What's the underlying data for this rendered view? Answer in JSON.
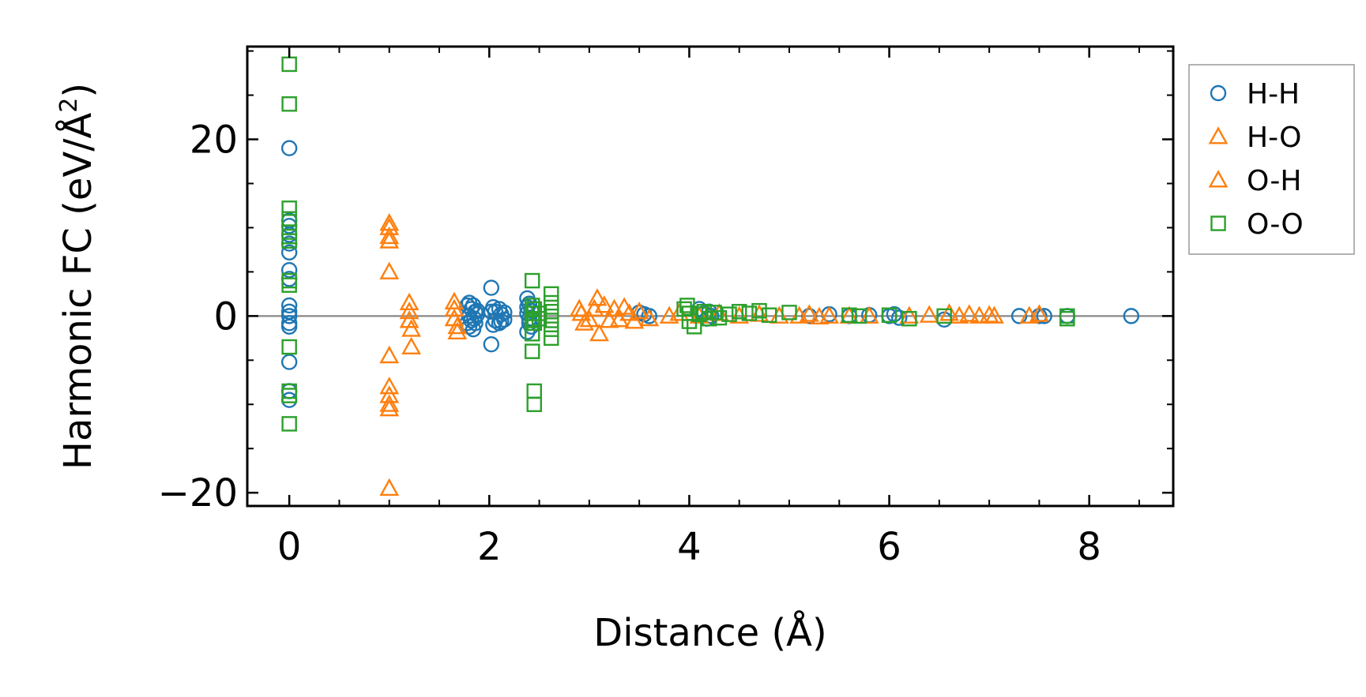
{
  "chart_data": {
    "type": "scatter",
    "title": "",
    "xlabel": "Distance (Å)",
    "ylabel_main": "Harmonic FC (eV/Å",
    "ylabel_sup": "2",
    "ylabel_close": ")",
    "xlim": [
      -0.42,
      8.84
    ],
    "ylim": [
      -21.5,
      30.5
    ],
    "xticks": [
      0,
      2,
      4,
      6,
      8
    ],
    "xtick_labels": [
      "0",
      "2",
      "4",
      "6",
      "8"
    ],
    "yticks": [
      -20,
      0,
      20
    ],
    "ytick_labels": [
      "−20",
      "0",
      "20"
    ],
    "x_minor_step": 0.5,
    "y_minor_step": 5,
    "zero_line": true,
    "grid": false,
    "legend_position": "outside-right-top",
    "series": [
      {
        "name": "H-H",
        "marker": "circle",
        "color": "#1f77b4",
        "x": [
          0,
          0,
          0,
          0,
          0,
          0,
          0,
          0,
          0,
          0,
          0,
          0,
          0,
          0,
          0,
          0,
          1.78,
          1.78,
          1.8,
          1.8,
          1.82,
          1.82,
          1.84,
          1.84,
          1.86,
          1.86,
          1.88,
          1.88,
          1.8,
          1.85,
          2.02,
          2.02,
          2.02,
          2.04,
          2.04,
          2.06,
          2.06,
          2.1,
          2.1,
          2.12,
          2.12,
          2.15,
          2.15,
          2.38,
          2.38,
          2.38,
          2.38,
          2.4,
          2.4,
          2.4,
          2.42,
          2.42,
          3.5,
          3.55,
          3.6,
          4.1,
          4.15,
          4.18,
          4.2,
          4.22,
          5.2,
          5.4,
          5.6,
          5.8,
          6.0,
          6.05,
          6.1,
          6.55,
          7.3,
          7.5,
          7.55,
          7.78,
          8.42
        ],
        "y": [
          19,
          10.8,
          10.2,
          9.2,
          8.2,
          7.2,
          5.2,
          4.2,
          1.2,
          0.5,
          0,
          -0.8,
          -1.2,
          -5.2,
          -8.5,
          -9.5,
          1.2,
          -0.8,
          1.5,
          -1.2,
          0.8,
          -0.5,
          1.2,
          -1.5,
          0.5,
          -0.8,
          0.2,
          0.6,
          0,
          -0.3,
          3.2,
          -3.2,
          0.5,
          1.0,
          -1.0,
          0.5,
          -0.5,
          0.8,
          -0.8,
          0.2,
          -0.6,
          0.4,
          -0.4,
          2.0,
          -1.8,
          1.0,
          0.3,
          1.4,
          -0.8,
          -0.3,
          0.6,
          -1.2,
          0.4,
          0.2,
          0,
          0.8,
          0.3,
          -0.3,
          0.5,
          0,
          0,
          0.2,
          0,
          0.1,
          0,
          0.2,
          -0.2,
          -0.4,
          0,
          0,
          0,
          0,
          0
        ]
      },
      {
        "name": "H-O",
        "marker": "triangle",
        "color": "#ff7f0e",
        "x": [
          1.0,
          1.0,
          1.0,
          1.0,
          1.0,
          1.0,
          1.0,
          1.0,
          1.0,
          1.0,
          1.0,
          1.2,
          1.2,
          1.2,
          1.22,
          1.22,
          1.65,
          1.65,
          1.65,
          1.68,
          1.68,
          2.9,
          2.92,
          2.95,
          3.0,
          3.05,
          3.08,
          3.1,
          3.15,
          3.2,
          3.25,
          3.3,
          3.35,
          3.4,
          3.45
        ],
        "y": [
          10.5,
          10,
          9,
          8.5,
          5,
          -4.5,
          -8,
          -9,
          -10,
          -10.5,
          -19.5,
          1.5,
          0.5,
          -0.5,
          -1.5,
          -3.5,
          1.6,
          0.8,
          -0.3,
          -1.2,
          -1.8,
          0.8,
          0.3,
          -0.8,
          -0.4,
          0.8,
          2.0,
          -2.0,
          1.2,
          -0.5,
          0.8,
          -0.4,
          1.0,
          0.3,
          -0.6
        ]
      },
      {
        "name": "O-H",
        "marker": "triangle",
        "color": "#ff7f0e",
        "x": [
          3.5,
          3.6,
          3.8,
          3.9,
          4.1,
          4.3,
          4.5,
          4.7,
          4.9,
          5.1,
          5.2,
          5.3,
          5.4,
          5.6,
          5.8,
          6.2,
          6.4,
          6.6,
          6.7,
          6.8,
          6.9,
          7.0,
          7.05,
          7.4,
          7.5
        ],
        "y": [
          0.5,
          -0.3,
          0,
          0.3,
          0,
          0.3,
          0,
          0.2,
          0,
          0,
          0.2,
          -0.1,
          0,
          0,
          0,
          0,
          0.1,
          0.3,
          0,
          0.2,
          0,
          0.1,
          0,
          0,
          0.2
        ]
      },
      {
        "name": "O-O",
        "marker": "square",
        "color": "#2ca02c",
        "x": [
          0,
          0,
          0,
          0,
          0,
          0,
          0,
          0,
          0,
          0,
          0,
          0,
          0,
          2.43,
          2.43,
          2.43,
          2.43,
          2.43,
          2.43,
          2.45,
          2.45,
          2.45,
          2.45,
          2.5,
          2.5,
          2.62,
          2.62,
          2.62,
          2.62,
          2.62,
          2.62,
          3.95,
          3.98,
          4.0,
          4.0,
          4.05,
          4.1,
          4.15,
          4.2,
          4.25,
          4.3,
          4.4,
          4.5,
          4.6,
          4.7,
          4.8,
          5.0,
          5.6,
          5.7,
          6.0,
          6.2,
          6.55,
          7.78,
          7.78
        ],
        "y": [
          28.5,
          24,
          12.2,
          11,
          9.5,
          9,
          8.5,
          4,
          3.5,
          -3.5,
          -8.5,
          -9,
          -12.2,
          4.0,
          1.2,
          0.3,
          -0.5,
          -2.0,
          -4.0,
          -8.5,
          -10.0,
          0.8,
          -0.8,
          0.3,
          -0.3,
          2.5,
          1.5,
          0.5,
          -0.5,
          -1.5,
          -2.5,
          0.8,
          1.2,
          0.3,
          -0.6,
          -1.2,
          0.2,
          0.5,
          -0.3,
          0.4,
          -0.2,
          0.2,
          0.5,
          0.3,
          0.6,
          0.1,
          0.4,
          0.1,
          0,
          0.1,
          -0.3,
          0,
          0,
          -0.3
        ]
      }
    ]
  }
}
